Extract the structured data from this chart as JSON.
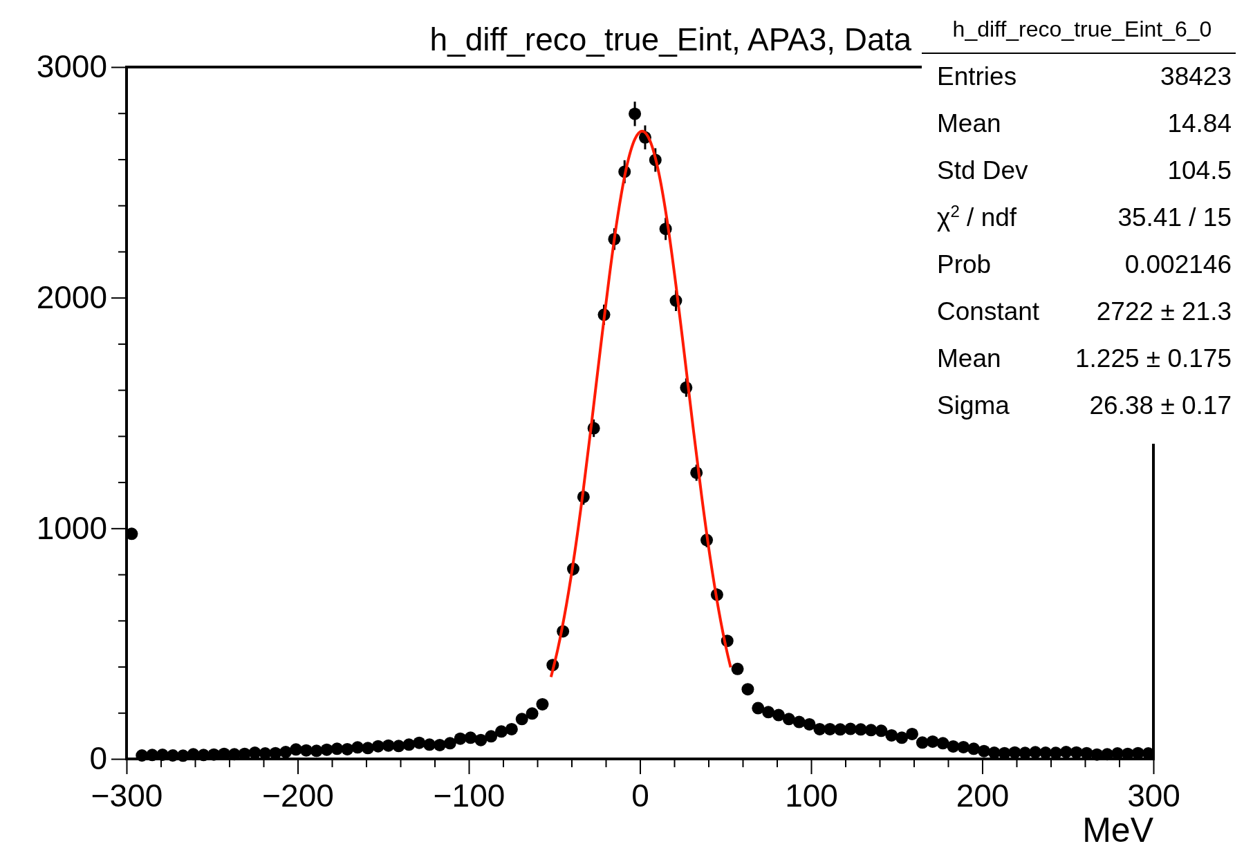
{
  "chart_data": {
    "type": "scatter",
    "title": "h_diff_reco_true_Eint, APA3, Data",
    "xlabel": "MeV",
    "xlim": [
      -300,
      300
    ],
    "xticks": [
      {
        "value": -300,
        "label": "−300"
      },
      {
        "value": -280,
        "label": null
      },
      {
        "value": -260,
        "label": null
      },
      {
        "value": -240,
        "label": null
      },
      {
        "value": -220,
        "label": null
      },
      {
        "value": -200,
        "label": "−200"
      },
      {
        "value": -180,
        "label": null
      },
      {
        "value": -160,
        "label": null
      },
      {
        "value": -140,
        "label": null
      },
      {
        "value": -120,
        "label": null
      },
      {
        "value": -100,
        "label": "−100"
      },
      {
        "value": -80,
        "label": null
      },
      {
        "value": -60,
        "label": null
      },
      {
        "value": -40,
        "label": null
      },
      {
        "value": -20,
        "label": null
      },
      0,
      {
        "value": 20,
        "label": null
      },
      {
        "value": 40,
        "label": null
      },
      {
        "value": 60,
        "label": null
      },
      {
        "value": 80,
        "label": null
      },
      100,
      {
        "value": 120,
        "label": null
      },
      {
        "value": 140,
        "label": null
      },
      {
        "value": 160,
        "label": null
      },
      {
        "value": 180,
        "label": null
      },
      200,
      {
        "value": 220,
        "label": null
      },
      {
        "value": 240,
        "label": null
      },
      {
        "value": 260,
        "label": null
      },
      {
        "value": 280,
        "label": null
      },
      300
    ],
    "ylim": [
      0,
      3000
    ],
    "yticks": [
      0,
      {
        "value": 200,
        "label": null
      },
      {
        "value": 400,
        "label": null
      },
      {
        "value": 600,
        "label": null
      },
      {
        "value": 800,
        "label": null
      },
      1000,
      {
        "value": 1200,
        "label": null
      },
      {
        "value": 1400,
        "label": null
      },
      {
        "value": 1600,
        "label": null
      },
      {
        "value": 1800,
        "label": null
      },
      2000,
      {
        "value": 2200,
        "label": null
      },
      {
        "value": 2400,
        "label": null
      },
      {
        "value": 2600,
        "label": null
      },
      {
        "value": 2800,
        "label": null
      },
      3000
    ],
    "grid": false,
    "annotations": [
      "h_diff_reco_true_Eint_6_0",
      "Entries\t38423",
      "Mean\t14.84",
      "Std Dev\t104.5",
      "χ$^{2}$ / ndf\t35.41 / 15",
      "Prob\t0.002146",
      "Constant\t2722 ± 21.3",
      "Mean\t1.225 ± 0.175",
      "Sigma\t26.38 ± 0.17"
    ],
    "series": [
      {
        "marker": "circle",
        "color": "#000000",
        "x": [
          -297,
          -291,
          -285,
          -279,
          -273,
          -267,
          -261,
          -255,
          -249,
          -243,
          -237,
          -231,
          -225,
          -219,
          -213,
          -207,
          -201,
          -195,
          -189,
          -183,
          -177,
          -171,
          -165,
          -159,
          -153,
          -147,
          -141,
          -135,
          -129,
          -123,
          -117,
          -111,
          -105,
          -99,
          -93,
          -87,
          -81,
          -75,
          -69,
          -63,
          -57,
          -51,
          -45,
          -39,
          -33,
          -27,
          -21,
          -15,
          -9,
          -3,
          3,
          9,
          15,
          21,
          27,
          33,
          39,
          45,
          51,
          57,
          63,
          69,
          75,
          81,
          87,
          93,
          99,
          105,
          111,
          117,
          123,
          129,
          135,
          141,
          147,
          153,
          159,
          165,
          171,
          177,
          183,
          189,
          195,
          201,
          207,
          213,
          219,
          225,
          231,
          237,
          243,
          249,
          255,
          261,
          267,
          273,
          279,
          285,
          291,
          297
        ],
        "values": [
          976,
          15,
          17,
          18,
          15,
          14,
          20,
          17,
          19,
          22,
          20,
          22,
          27,
          24,
          25,
          30,
          41,
          37,
          35,
          40,
          44,
          42,
          50,
          47,
          55,
          58,
          56,
          62,
          70,
          62,
          60,
          68,
          88,
          92,
          82,
          98,
          119,
          129,
          173,
          197,
          237,
          407,
          553,
          824,
          1136,
          1434,
          1926,
          2254,
          2546,
          2797,
          2695,
          2597,
          2298,
          1987,
          1610,
          1241,
          949,
          712,
          512,
          390,
          302,
          220,
          203,
          190,
          173,
          160,
          150,
          129,
          129,
          128,
          130,
          128,
          125,
          122,
          102,
          92,
          108,
          71,
          75,
          68,
          54,
          51,
          44,
          34,
          27,
          25,
          28,
          26,
          29,
          27,
          26,
          30,
          28,
          25,
          19,
          20,
          24,
          22,
          25,
          24
        ],
        "errors": [
          null,
          null,
          null,
          null,
          null,
          null,
          null,
          null,
          null,
          null,
          null,
          null,
          null,
          null,
          null,
          null,
          null,
          null,
          null,
          null,
          null,
          null,
          null,
          null,
          null,
          null,
          null,
          null,
          null,
          null,
          null,
          null,
          null,
          null,
          null,
          null,
          null,
          null,
          null,
          null,
          null,
          20,
          24,
          29,
          34,
          38,
          44,
          47,
          50,
          53,
          52,
          51,
          48,
          45,
          40,
          35,
          31,
          27,
          23,
          null,
          null,
          null,
          null,
          null,
          null,
          null,
          null,
          null,
          null,
          null,
          null,
          null,
          null,
          null,
          null,
          null,
          null,
          null,
          null,
          null,
          null,
          null,
          null,
          null,
          null,
          null,
          null,
          null,
          null,
          null,
          null,
          null,
          null,
          null,
          null,
          null,
          null,
          null,
          null,
          null
        ]
      },
      {
        "type": "line",
        "color": "#ff1a00",
        "x": [
          -52,
          -48,
          -43,
          -38,
          -33,
          -28,
          -23,
          -18,
          -13,
          -8,
          -3,
          1.225,
          6,
          11,
          16,
          21,
          26,
          31,
          36,
          41,
          46,
          51,
          53
        ],
        "values": [
          355,
          477,
          668,
          901,
          1173,
          1474,
          1786,
          2087,
          2354,
          2561,
          2687,
          2722,
          2678,
          2541,
          2327,
          2055,
          1751,
          1440,
          1142,
          873,
          645,
          459,
          397
        ]
      }
    ]
  }
}
